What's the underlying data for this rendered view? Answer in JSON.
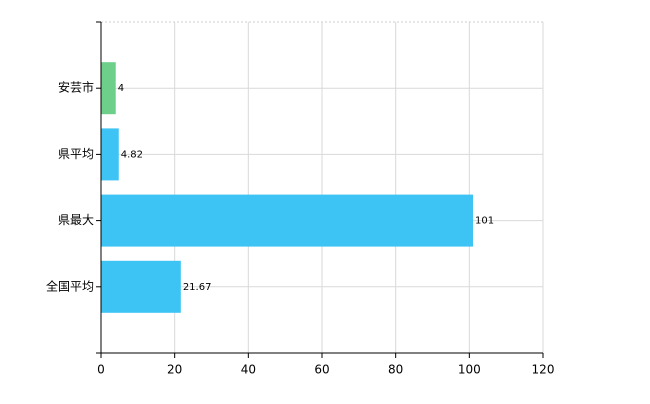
{
  "chart_data": {
    "type": "bar",
    "orientation": "horizontal",
    "categories": [
      "安芸市",
      "県平均",
      "県最大",
      "全国平均"
    ],
    "values": [
      4,
      4.82,
      101,
      21.67
    ],
    "colors": [
      "#6dcf8a",
      "#3ec3f5",
      "#3ec3f5",
      "#3ec3f5"
    ],
    "xlim": [
      0,
      120
    ],
    "xticks": [
      0,
      20,
      40,
      60,
      80,
      100,
      120
    ],
    "grid": true
  }
}
